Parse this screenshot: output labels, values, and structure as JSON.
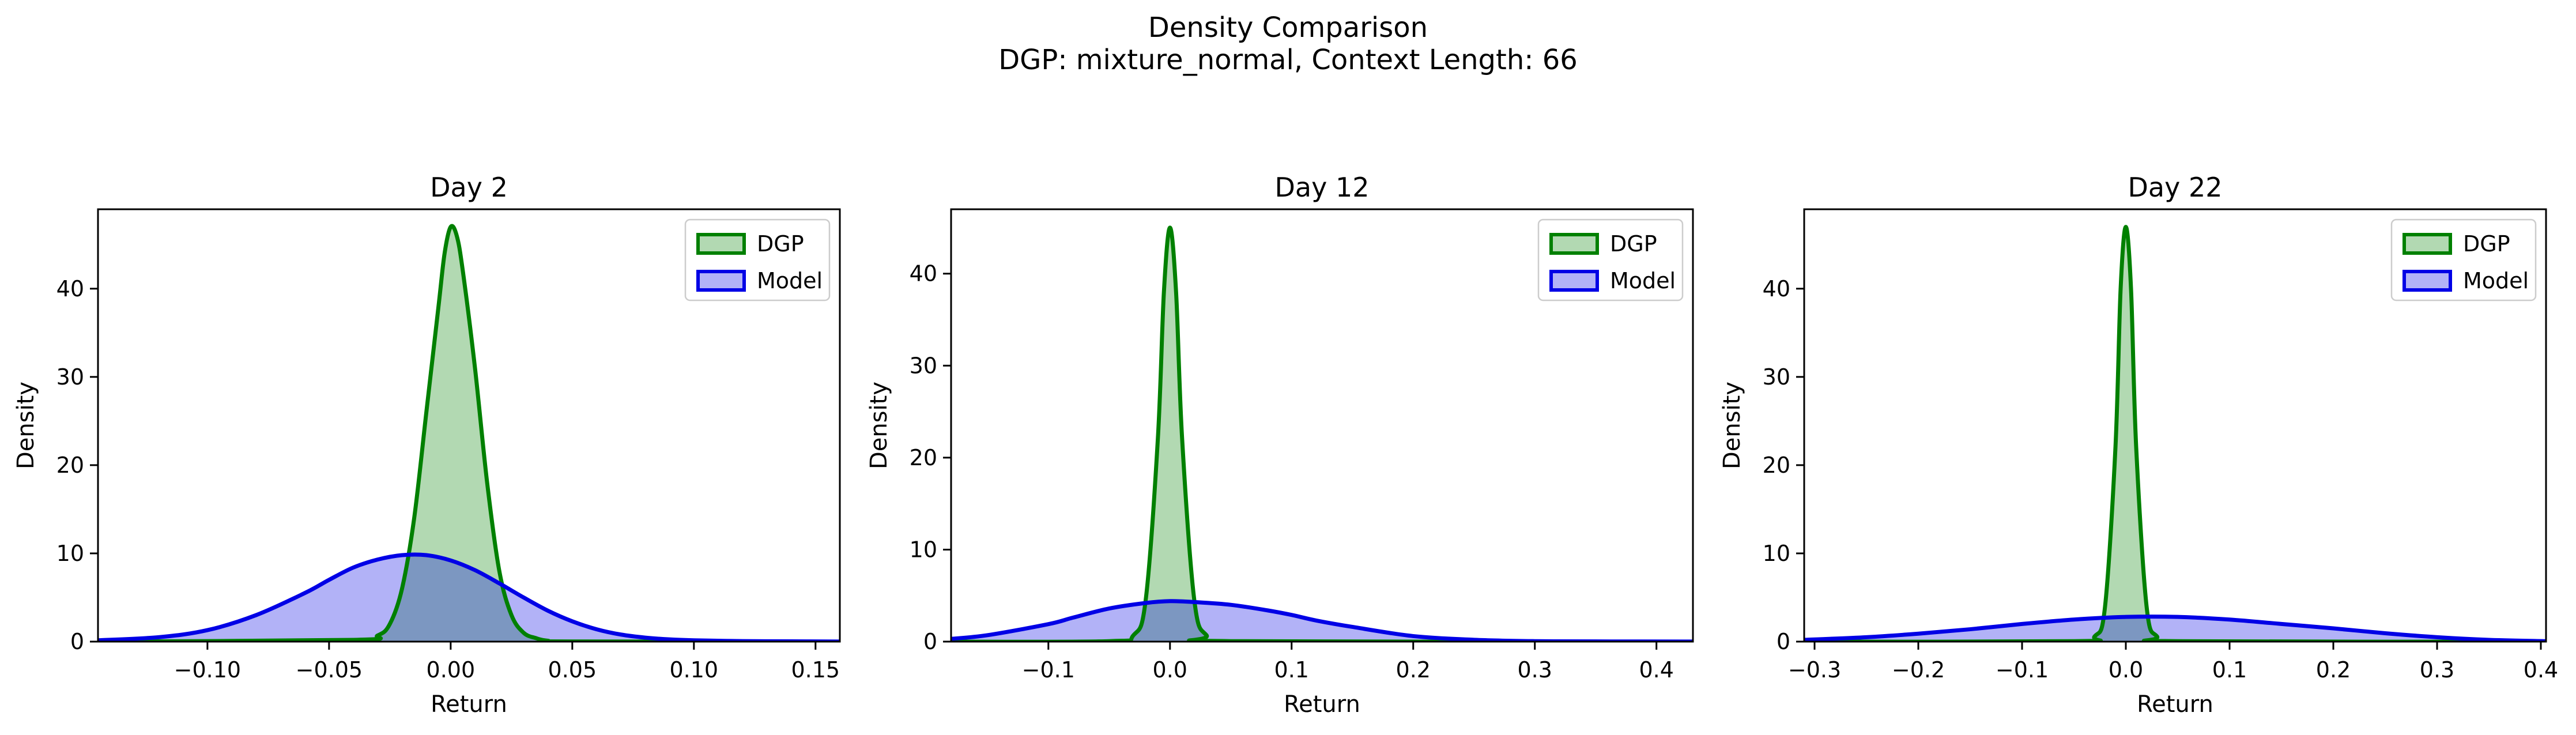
{
  "figure": {
    "title": "Density Comparison",
    "subtitle": "DGP: mixture_normal, Context Length: 66"
  },
  "chart_data": [
    {
      "type": "area",
      "title": "Day 2",
      "xlabel": "Return",
      "ylabel": "Density",
      "xlim": [
        -0.145,
        0.16
      ],
      "ylim": [
        0,
        49
      ],
      "xticks": [
        -0.1,
        -0.05,
        0.0,
        0.05,
        0.1,
        0.15
      ],
      "xtick_labels": [
        "−0.10",
        "−0.05",
        "0.00",
        "0.05",
        "0.10",
        "0.15"
      ],
      "yticks": [
        0,
        10,
        20,
        30,
        40
      ],
      "ytick_labels": [
        "0",
        "10",
        "20",
        "30",
        "40"
      ],
      "legend": "top-right",
      "series": [
        {
          "name": "DGP",
          "color": "#008000",
          "fill": "#b3dfb3",
          "x": [
            -0.145,
            -0.04,
            -0.03,
            -0.025,
            -0.02,
            -0.015,
            -0.01,
            -0.005,
            -0.0025,
            0.0,
            0.0025,
            0.005,
            0.01,
            0.015,
            0.02,
            0.025,
            0.03,
            0.035,
            0.04,
            0.05,
            0.16
          ],
          "y": [
            0,
            0.2,
            0.7,
            2.0,
            6.0,
            14.0,
            26.0,
            38.0,
            44.0,
            47.0,
            46.0,
            42.0,
            31.0,
            18.0,
            8.0,
            3.0,
            1.0,
            0.4,
            0.1,
            0.02,
            0
          ]
        },
        {
          "name": "Model",
          "color": "#0000e6",
          "fill": "#b0b0ff",
          "x": [
            -0.145,
            -0.12,
            -0.1,
            -0.08,
            -0.06,
            -0.05,
            -0.04,
            -0.03,
            -0.02,
            -0.01,
            0.0,
            0.01,
            0.02,
            0.03,
            0.04,
            0.05,
            0.06,
            0.07,
            0.08,
            0.09,
            0.1,
            0.12,
            0.14,
            0.16
          ],
          "y": [
            0.15,
            0.5,
            1.3,
            3.0,
            5.5,
            7.0,
            8.4,
            9.3,
            9.8,
            9.8,
            9.2,
            8.1,
            6.6,
            5.0,
            3.5,
            2.3,
            1.4,
            0.8,
            0.45,
            0.25,
            0.15,
            0.06,
            0.03,
            0.01
          ]
        }
      ]
    },
    {
      "type": "area",
      "title": "Day 12",
      "xlabel": "Return",
      "ylabel": "Density",
      "xlim": [
        -0.18,
        0.43
      ],
      "ylim": [
        0,
        47
      ],
      "xticks": [
        -0.1,
        0.0,
        0.1,
        0.2,
        0.3,
        0.4
      ],
      "xtick_labels": [
        "−0.1",
        "0.0",
        "0.1",
        "0.2",
        "0.3",
        "0.4"
      ],
      "yticks": [
        0,
        10,
        20,
        30,
        40
      ],
      "ytick_labels": [
        "0",
        "10",
        "20",
        "30",
        "40"
      ],
      "legend": "top-right",
      "series": [
        {
          "name": "DGP",
          "color": "#008000",
          "fill": "#b3dfb3",
          "x": [
            -0.18,
            -0.05,
            -0.03,
            -0.02,
            -0.01,
            -0.005,
            0.0,
            0.005,
            0.01,
            0.02,
            0.03,
            0.05,
            0.43
          ],
          "y": [
            0,
            0.05,
            0.7,
            4.5,
            22.0,
            38.0,
            45.0,
            38.0,
            22.0,
            4.5,
            0.7,
            0.05,
            0
          ]
        },
        {
          "name": "Model",
          "color": "#0000e6",
          "fill": "#b0b0ff",
          "x": [
            -0.18,
            -0.15,
            -0.1,
            -0.08,
            -0.05,
            -0.02,
            0.0,
            0.02,
            0.05,
            0.08,
            0.1,
            0.12,
            0.15,
            0.2,
            0.25,
            0.3,
            0.35,
            0.43
          ],
          "y": [
            0.3,
            0.7,
            1.9,
            2.6,
            3.6,
            4.2,
            4.4,
            4.3,
            4.0,
            3.4,
            2.9,
            2.3,
            1.6,
            0.6,
            0.2,
            0.05,
            0.02,
            0.01
          ]
        }
      ]
    },
    {
      "type": "area",
      "title": "Day 22",
      "xlabel": "Return",
      "ylabel": "Density",
      "xlim": [
        -0.31,
        0.405
      ],
      "ylim": [
        0,
        49
      ],
      "xticks": [
        -0.3,
        -0.2,
        -0.1,
        0.0,
        0.1,
        0.2,
        0.3,
        0.4
      ],
      "xtick_labels": [
        "−0.3",
        "−0.2",
        "−0.1",
        "0.0",
        "0.1",
        "0.2",
        "0.3",
        "0.4"
      ],
      "yticks": [
        0,
        10,
        20,
        30,
        40
      ],
      "ytick_labels": [
        "0",
        "10",
        "20",
        "30",
        "40"
      ],
      "legend": "top-right",
      "series": [
        {
          "name": "DGP",
          "color": "#008000",
          "fill": "#b3dfb3",
          "x": [
            -0.31,
            -0.05,
            -0.03,
            -0.02,
            -0.01,
            -0.005,
            0.0,
            0.005,
            0.01,
            0.02,
            0.03,
            0.05,
            0.405
          ],
          "y": [
            0,
            0.05,
            0.6,
            4.0,
            22.0,
            40.0,
            47.0,
            40.0,
            22.0,
            4.0,
            0.6,
            0.05,
            0
          ]
        },
        {
          "name": "Model",
          "color": "#0000e6",
          "fill": "#b0b0ff",
          "x": [
            -0.31,
            -0.25,
            -0.2,
            -0.15,
            -0.1,
            -0.05,
            0.0,
            0.05,
            0.1,
            0.15,
            0.2,
            0.25,
            0.3,
            0.35,
            0.405
          ],
          "y": [
            0.2,
            0.5,
            0.9,
            1.4,
            2.0,
            2.5,
            2.8,
            2.8,
            2.5,
            2.0,
            1.5,
            0.95,
            0.5,
            0.2,
            0.05
          ]
        }
      ]
    }
  ]
}
